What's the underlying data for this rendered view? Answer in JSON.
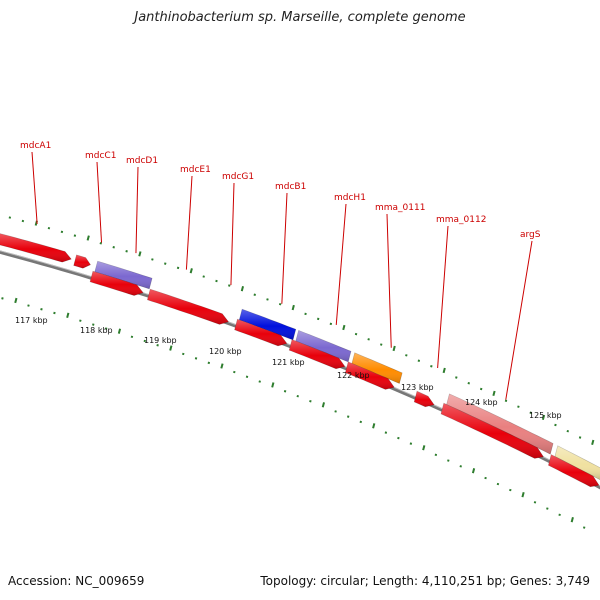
{
  "title": "Janthinobacterium sp. Marseille, complete genome",
  "footer": {
    "accession": "Accession: NC_009659",
    "summary": "Topology: circular; Length: 4,110,251 bp; Genes: 3,749"
  },
  "colors": {
    "cds": "#e8000b",
    "purple": "#7b68d0",
    "blue": "#0010dd",
    "orange": "#ff8c00",
    "pink": "#e98080",
    "yellow": "#f0e1a0",
    "tick": "#2e7d2e",
    "backbone": "#777777",
    "label": "#cc0000"
  },
  "gene_labels": [
    "mdcA1",
    "mdcC1",
    "mdcD1",
    "mdcE1",
    "mdcG1",
    "mdcB1",
    "mdcH1",
    "mma_0111",
    "mma_0112",
    "argS"
  ],
  "scale_labels": [
    "117 kbp",
    "118 kbp",
    "119 kbp",
    "120 kbp",
    "121 kbp",
    "122 kbp",
    "123 kbp",
    "124 kbp",
    "125 kbp"
  ]
}
